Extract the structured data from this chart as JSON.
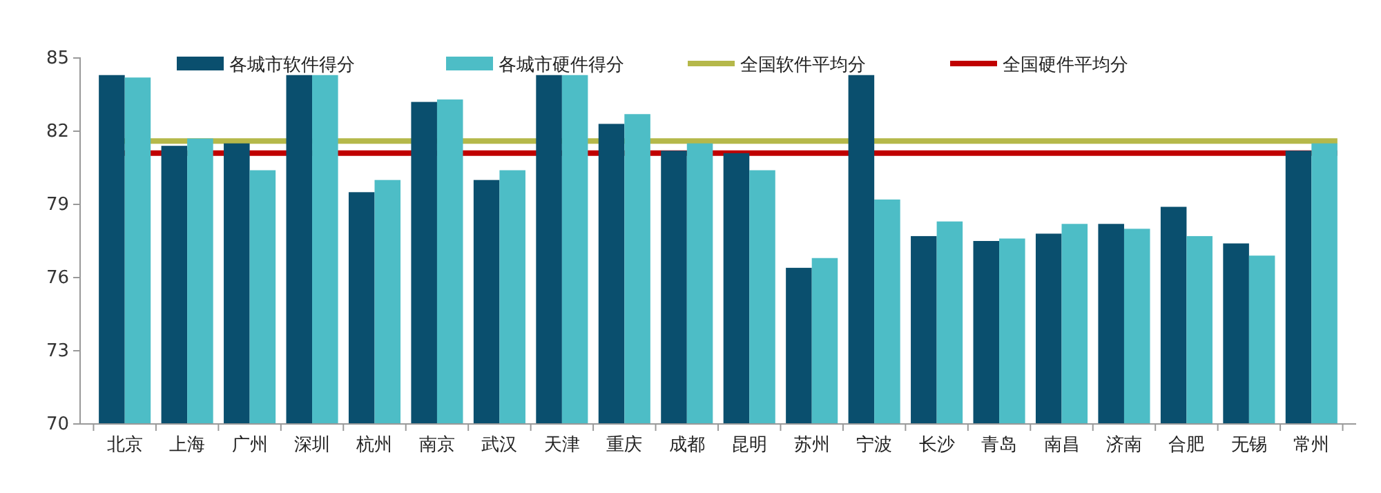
{
  "chart_data": {
    "type": "bar",
    "categories": [
      "北京",
      "上海",
      "广州",
      "深圳",
      "杭州",
      "南京",
      "武汉",
      "天津",
      "重庆",
      "成都",
      "昆明",
      "苏州",
      "宁波",
      "长沙",
      "青岛",
      "南昌",
      "济南",
      "合肥",
      "无锡",
      "常州"
    ],
    "series": [
      {
        "name": "各城市软件得分",
        "color": "#0a4f6e",
        "values": [
          84.3,
          81.4,
          81.5,
          84.3,
          79.5,
          83.2,
          80.0,
          84.3,
          82.3,
          81.2,
          81.1,
          76.4,
          84.3,
          77.7,
          77.5,
          77.8,
          78.2,
          78.9,
          77.4,
          81.2
        ]
      },
      {
        "name": "各城市硬件得分",
        "color": "#4dbdc6",
        "values": [
          84.2,
          81.7,
          80.4,
          84.3,
          80.0,
          83.3,
          80.4,
          84.3,
          82.7,
          81.5,
          80.4,
          76.8,
          79.2,
          78.3,
          77.6,
          78.2,
          78.0,
          77.7,
          76.9,
          81.5
        ]
      }
    ],
    "ref_lines": [
      {
        "axis": "y",
        "value": 81.6,
        "label": "全国软件平均分",
        "color": "#b5b84a"
      },
      {
        "axis": "y",
        "value": 81.1,
        "label": "全国硬件平均分",
        "color": "#c00000"
      }
    ],
    "ylim": [
      70,
      85
    ],
    "yticks": [
      70,
      73,
      76,
      79,
      82,
      85
    ],
    "grid": false,
    "legend": "top"
  }
}
